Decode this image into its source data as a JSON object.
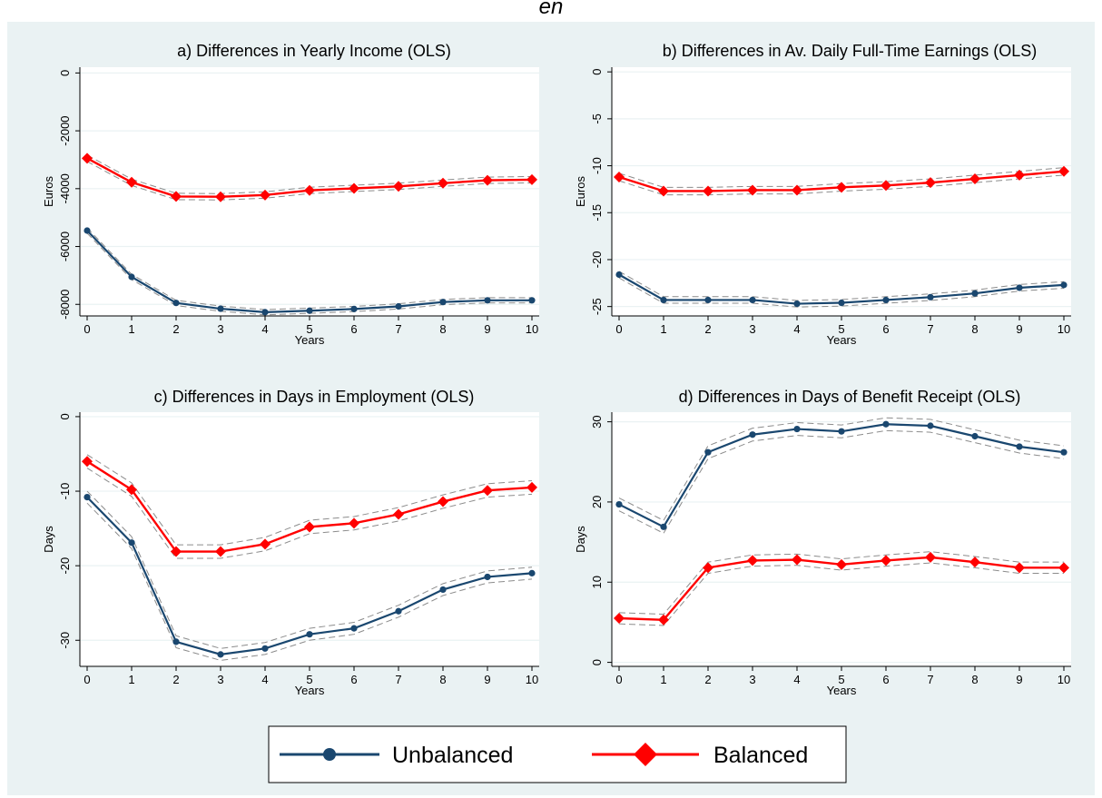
{
  "page": {
    "caption": "en "
  },
  "colors": {
    "background": "#eaf2f3",
    "plot_background": "#ffffff",
    "grid": "#eaf2f3",
    "unbalanced": "#1a476f",
    "balanced": "#ff0000",
    "ci": "#8c8c8c"
  },
  "legend": {
    "items": [
      {
        "label": "Unbalanced",
        "series_key": "unbalanced",
        "marker": "circle"
      },
      {
        "label": "Balanced",
        "series_key": "balanced",
        "marker": "diamond"
      }
    ]
  },
  "chart_data": [
    {
      "type": "line",
      "title": "a) Differences in Yearly Income (OLS)",
      "xlabel": "Years",
      "ylabel": "Euros",
      "xlim": [
        0,
        10
      ],
      "ylim": [
        -8400,
        200
      ],
      "x_ticks": [
        0,
        1,
        2,
        3,
        4,
        5,
        6,
        7,
        8,
        9,
        10
      ],
      "y_ticks": [
        0,
        -2000,
        -4000,
        -6000,
        -8000
      ],
      "x": [
        0,
        1,
        2,
        3,
        4,
        5,
        6,
        7,
        8,
        9,
        10
      ],
      "series": [
        {
          "key": "unbalanced",
          "name": "Unbalanced",
          "values": [
            -5450,
            -7050,
            -7950,
            -8150,
            -8270,
            -8220,
            -8160,
            -8070,
            -7920,
            -7860,
            -7860
          ],
          "ci_half_width": 90
        },
        {
          "key": "balanced",
          "name": "Balanced",
          "values": [
            -2950,
            -3780,
            -4270,
            -4280,
            -4220,
            -4060,
            -3990,
            -3920,
            -3810,
            -3710,
            -3690
          ],
          "ci_half_width": 110
        }
      ]
    },
    {
      "type": "line",
      "title": "b) Differences in Av. Daily Full-Time Earnings (OLS)",
      "xlabel": "Years",
      "ylabel": "Euros",
      "xlim": [
        0,
        10
      ],
      "ylim": [
        -26,
        0.5
      ],
      "x_ticks": [
        0,
        1,
        2,
        3,
        4,
        5,
        6,
        7,
        8,
        9,
        10
      ],
      "y_ticks": [
        0,
        -5,
        -10,
        -15,
        -20,
        -25
      ],
      "x": [
        0,
        1,
        2,
        3,
        4,
        5,
        6,
        7,
        8,
        9,
        10
      ],
      "series": [
        {
          "key": "unbalanced",
          "name": "Unbalanced",
          "values": [
            -21.6,
            -24.3,
            -24.3,
            -24.3,
            -24.7,
            -24.6,
            -24.3,
            -24.0,
            -23.6,
            -23.0,
            -22.7
          ],
          "ci_half_width": 0.35
        },
        {
          "key": "balanced",
          "name": "Balanced",
          "values": [
            -11.2,
            -12.7,
            -12.7,
            -12.6,
            -12.6,
            -12.3,
            -12.1,
            -11.8,
            -11.4,
            -11.0,
            -10.6
          ],
          "ci_half_width": 0.4
        }
      ]
    },
    {
      "type": "line",
      "title": "c) Differences in Days in Employment (OLS)",
      "xlabel": "Years",
      "ylabel": "Days",
      "xlim": [
        0,
        10
      ],
      "ylim": [
        -33.5,
        0.6
      ],
      "x_ticks": [
        0,
        1,
        2,
        3,
        4,
        5,
        6,
        7,
        8,
        9,
        10
      ],
      "y_ticks": [
        0,
        -10,
        -20,
        -30
      ],
      "x": [
        0,
        1,
        2,
        3,
        4,
        5,
        6,
        7,
        8,
        9,
        10
      ],
      "series": [
        {
          "key": "unbalanced",
          "name": "Unbalanced",
          "values": [
            -10.8,
            -16.9,
            -30.2,
            -31.9,
            -31.1,
            -29.2,
            -28.4,
            -26.1,
            -23.2,
            -21.5,
            -21.0
          ],
          "ci_half_width": 0.8
        },
        {
          "key": "balanced",
          "name": "Balanced",
          "values": [
            -6.0,
            -9.8,
            -18.1,
            -18.1,
            -17.1,
            -14.8,
            -14.3,
            -13.1,
            -11.4,
            -9.9,
            -9.5
          ],
          "ci_half_width": 0.9
        }
      ]
    },
    {
      "type": "line",
      "title": "d) Differences in Days of Benefit Receipt (OLS)",
      "xlabel": "Years",
      "ylabel": "Days",
      "xlim": [
        0,
        10
      ],
      "ylim": [
        -0.5,
        31.2
      ],
      "x_ticks": [
        0,
        1,
        2,
        3,
        4,
        5,
        6,
        7,
        8,
        9,
        10
      ],
      "y_ticks": [
        0,
        10,
        20,
        30
      ],
      "x": [
        0,
        1,
        2,
        3,
        4,
        5,
        6,
        7,
        8,
        9,
        10
      ],
      "series": [
        {
          "key": "unbalanced",
          "name": "Unbalanced",
          "values": [
            19.7,
            16.9,
            26.2,
            28.4,
            29.1,
            28.8,
            29.7,
            29.5,
            28.2,
            26.9,
            26.2
          ],
          "ci_half_width": 0.8
        },
        {
          "key": "balanced",
          "name": "Balanced",
          "values": [
            5.5,
            5.3,
            11.8,
            12.7,
            12.8,
            12.2,
            12.7,
            13.1,
            12.5,
            11.8,
            11.8
          ],
          "ci_half_width": 0.7
        }
      ]
    }
  ]
}
